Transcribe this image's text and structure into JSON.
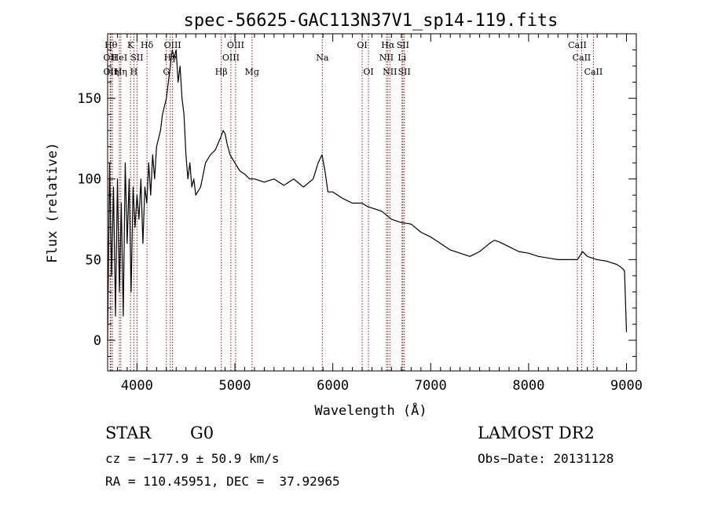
{
  "chart_data": {
    "type": "line",
    "title": "spec-56625-GAC113N37V1_sp14-119.fits",
    "xlabel": "Wavelength (Å)",
    "ylabel": "Flux (relative)",
    "xlim": [
      3700,
      9100
    ],
    "ylim": [
      -19,
      190
    ],
    "xticks": [
      4000,
      5000,
      6000,
      7000,
      8000,
      9000
    ],
    "yticks": [
      0,
      50,
      100,
      150
    ],
    "grid": false,
    "legend": "none",
    "line_color": "#000000",
    "marker_color": "#8b1a1a",
    "series": [
      {
        "x": [
          3700,
          3720,
          3740,
          3760,
          3780,
          3800,
          3820,
          3840,
          3860,
          3880,
          3900,
          3920,
          3940,
          3960,
          3980,
          4000,
          4020,
          4040,
          4060,
          4080,
          4100,
          4120,
          4140,
          4160,
          4180,
          4200,
          4220,
          4240,
          4260,
          4280,
          4300,
          4320,
          4340,
          4360,
          4380,
          4400,
          4420,
          4440,
          4460,
          4480,
          4500,
          4520,
          4540,
          4560,
          4580,
          4600,
          4650,
          4700,
          4750,
          4800,
          4850,
          4880,
          4900,
          4920,
          4950,
          5000,
          5050,
          5100,
          5150,
          5200,
          5300,
          5400,
          5500,
          5600,
          5700,
          5800,
          5850,
          5890,
          5920,
          5950,
          6000,
          6100,
          6200,
          6300,
          6350,
          6400,
          6500,
          6600,
          6700,
          6800,
          6900,
          7000,
          7100,
          7200,
          7300,
          7400,
          7500,
          7600,
          7650,
          7700,
          7800,
          7900,
          8000,
          8100,
          8200,
          8300,
          8400,
          8500,
          8550,
          8600,
          8700,
          8800,
          8900,
          8950,
          8980,
          9000
        ],
        "values": [
          0,
          110,
          40,
          95,
          15,
          100,
          30,
          85,
          15,
          110,
          60,
          100,
          30,
          95,
          70,
          90,
          75,
          100,
          60,
          95,
          85,
          110,
          90,
          115,
          100,
          120,
          125,
          130,
          140,
          145,
          150,
          160,
          170,
          180,
          175,
          180,
          160,
          170,
          150,
          140,
          115,
          100,
          110,
          95,
          100,
          90,
          95,
          110,
          115,
          118,
          125,
          130,
          128,
          122,
          115,
          110,
          105,
          103,
          100,
          100,
          98,
          100,
          96,
          100,
          95,
          100,
          110,
          115,
          105,
          92,
          92,
          88,
          85,
          85,
          83,
          82,
          80,
          75,
          73,
          72,
          67,
          64,
          60,
          56,
          54,
          52,
          55,
          60,
          62,
          61,
          58,
          55,
          54,
          52,
          51,
          50,
          50,
          50,
          55,
          52,
          50,
          49,
          47,
          45,
          43,
          5
        ]
      }
    ],
    "spectral_lines": [
      {
        "wavelength": 3734,
        "label": "Hθ",
        "row": 1
      },
      {
        "wavelength": 3727,
        "label": "OII",
        "row": 2
      },
      {
        "wavelength": 3727,
        "label": "OII",
        "row": 3
      },
      {
        "wavelength": 3750,
        "label": "Hη",
        "row": 3
      },
      {
        "wavelength": 3820,
        "label": "HeI",
        "row": 2
      },
      {
        "wavelength": 3835,
        "label": "Hη",
        "row": 3
      },
      {
        "wavelength": 3934,
        "label": "K",
        "row": 1
      },
      {
        "wavelength": 3968,
        "label": "H",
        "row": 3
      },
      {
        "wavelength": 4000,
        "label": "SII",
        "row": 2
      },
      {
        "wavelength": 4102,
        "label": "Hδ",
        "row": 1
      },
      {
        "wavelength": 4300,
        "label": "G",
        "row": 3
      },
      {
        "wavelength": 4340,
        "label": "Hγ",
        "row": 2
      },
      {
        "wavelength": 4363,
        "label": "OIII",
        "row": 1
      },
      {
        "wavelength": 4861,
        "label": "Hβ",
        "row": 3
      },
      {
        "wavelength": 4959,
        "label": "OIII",
        "row": 2
      },
      {
        "wavelength": 5007,
        "label": "OIII",
        "row": 1
      },
      {
        "wavelength": 5175,
        "label": "Mg",
        "row": 3
      },
      {
        "wavelength": 5893,
        "label": "Na",
        "row": 2
      },
      {
        "wavelength": 6300,
        "label": "OI",
        "row": 1
      },
      {
        "wavelength": 6364,
        "label": "OI",
        "row": 3
      },
      {
        "wavelength": 6548,
        "label": "NII",
        "row": 2
      },
      {
        "wavelength": 6563,
        "label": "Hα",
        "row": 1
      },
      {
        "wavelength": 6583,
        "label": "NII",
        "row": 3
      },
      {
        "wavelength": 6707,
        "label": "Li",
        "row": 2
      },
      {
        "wavelength": 6716,
        "label": "SII",
        "row": 1
      },
      {
        "wavelength": 6731,
        "label": "SII",
        "row": 3
      },
      {
        "wavelength": 8498,
        "label": "CaII",
        "row": 1
      },
      {
        "wavelength": 8542,
        "label": "CaII",
        "row": 2
      },
      {
        "wavelength": 8662,
        "label": "CaII",
        "row": 3
      }
    ]
  },
  "info": {
    "class_label": "STAR",
    "subclass_label": "G0",
    "survey_label": "LAMOST DR2",
    "redshift_line": "cz = −177.9 ± 50.9 km/s",
    "obsdate_line": "Obs−Date: 20131128",
    "coords_line": "RA = 110.45951, DEC =  37.92965"
  }
}
